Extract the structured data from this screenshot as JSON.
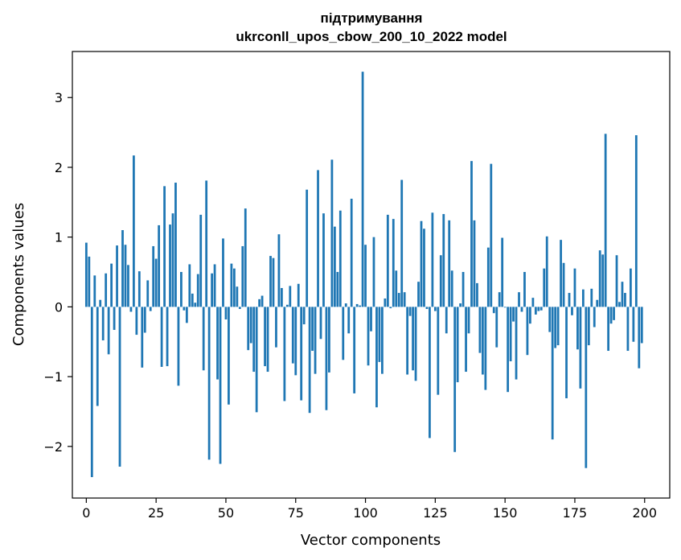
{
  "chart_data": {
    "type": "bar",
    "title_lines": [
      "підтримування",
      "ukrconll_upos_cbow_200_10_2022 model"
    ],
    "xlabel": "Vector components",
    "ylabel": "Components values",
    "xlim": [
      -5,
      209
    ],
    "ylim": [
      -2.74,
      3.66
    ],
    "xticks": [
      0,
      25,
      50,
      75,
      100,
      125,
      150,
      175,
      200
    ],
    "yticks": [
      -2,
      -1,
      0,
      1,
      2,
      3
    ],
    "ytick_labels": [
      "−2",
      "−1",
      "0",
      "1",
      "2",
      "3"
    ],
    "grid": false,
    "bar_color": "#1f77b4",
    "x": [
      0,
      1,
      2,
      3,
      4,
      5,
      6,
      7,
      8,
      9,
      10,
      11,
      12,
      13,
      14,
      15,
      16,
      17,
      18,
      19,
      20,
      21,
      22,
      23,
      24,
      25,
      26,
      27,
      28,
      29,
      30,
      31,
      32,
      33,
      34,
      35,
      36,
      37,
      38,
      39,
      40,
      41,
      42,
      43,
      44,
      45,
      46,
      47,
      48,
      49,
      50,
      51,
      52,
      53,
      54,
      55,
      56,
      57,
      58,
      59,
      60,
      61,
      62,
      63,
      64,
      65,
      66,
      67,
      68,
      69,
      70,
      71,
      72,
      73,
      74,
      75,
      76,
      77,
      78,
      79,
      80,
      81,
      82,
      83,
      84,
      85,
      86,
      87,
      88,
      89,
      90,
      91,
      92,
      93,
      94,
      95,
      96,
      97,
      98,
      99,
      100,
      101,
      102,
      103,
      104,
      105,
      106,
      107,
      108,
      109,
      110,
      111,
      112,
      113,
      114,
      115,
      116,
      117,
      118,
      119,
      120,
      121,
      122,
      123,
      124,
      125,
      126,
      127,
      128,
      129,
      130,
      131,
      132,
      133,
      134,
      135,
      136,
      137,
      138,
      139,
      140,
      141,
      142,
      143,
      144,
      145,
      146,
      147,
      148,
      149,
      150,
      151,
      152,
      153,
      154,
      155,
      156,
      157,
      158,
      159,
      160,
      161,
      162,
      163,
      164,
      165,
      166,
      167,
      168,
      169,
      170,
      171,
      172,
      173,
      174,
      175,
      176,
      177,
      178,
      179,
      180,
      181,
      182,
      183,
      184,
      185,
      186,
      187,
      188,
      189,
      190,
      191,
      192,
      193,
      194,
      195,
      196,
      197,
      198,
      199
    ],
    "values": [
      0.92,
      0.72,
      -2.44,
      0.45,
      -1.42,
      0.1,
      -0.48,
      0.48,
      -0.68,
      0.62,
      -0.33,
      0.88,
      -2.29,
      1.1,
      0.89,
      0.6,
      -0.07,
      2.17,
      -0.4,
      0.51,
      -0.87,
      -0.37,
      0.38,
      -0.06,
      0.87,
      0.69,
      1.17,
      -0.86,
      1.73,
      -0.85,
      1.18,
      1.34,
      1.78,
      -1.13,
      0.5,
      -0.05,
      -0.23,
      0.61,
      0.19,
      0.06,
      0.47,
      1.32,
      -0.91,
      1.81,
      -2.19,
      0.48,
      0.61,
      -1.04,
      -2.25,
      0.98,
      -0.18,
      -1.4,
      0.62,
      0.55,
      0.29,
      -0.03,
      0.87,
      1.41,
      -0.62,
      -0.52,
      -0.93,
      -1.51,
      0.11,
      0.16,
      -0.85,
      -0.93,
      0.73,
      0.7,
      -0.58,
      1.04,
      0.27,
      -1.35,
      0.03,
      0.3,
      -0.81,
      -0.98,
      0.33,
      -1.34,
      -0.25,
      1.68,
      -1.52,
      -0.63,
      -0.96,
      1.96,
      -0.46,
      1.34,
      -1.48,
      -0.94,
      2.11,
      1.15,
      0.5,
      1.38,
      -0.76,
      0.05,
      -0.38,
      1.55,
      -1.24,
      0.04,
      0.02,
      3.37,
      0.89,
      -0.84,
      -0.35,
      1.0,
      -1.44,
      -0.79,
      -0.96,
      0.12,
      1.32,
      -0.02,
      1.26,
      0.52,
      0.2,
      1.82,
      0.21,
      -0.97,
      -0.13,
      -0.91,
      -1.06,
      0.36,
      1.23,
      1.12,
      -0.03,
      -1.88,
      1.35,
      -0.06,
      -1.26,
      0.74,
      1.33,
      -0.38,
      1.24,
      0.52,
      -2.08,
      -1.08,
      0.05,
      0.5,
      -0.93,
      -0.38,
      2.09,
      1.24,
      0.34,
      -0.66,
      -0.97,
      -1.19,
      0.85,
      2.05,
      -0.09,
      -0.58,
      0.21,
      0.99,
      -0.01,
      -1.22,
      -0.78,
      -0.21,
      -1.04,
      0.21,
      -0.07,
      0.5,
      -0.69,
      -0.24,
      0.13,
      -0.11,
      -0.06,
      -0.05,
      0.55,
      1.01,
      -0.36,
      -1.9,
      -0.59,
      -0.55,
      0.96,
      0.63,
      -1.31,
      0.2,
      -0.12,
      0.55,
      -0.61,
      -1.17,
      0.25,
      -2.31,
      -0.55,
      0.26,
      -0.29,
      0.1,
      0.81,
      0.75,
      2.48,
      -0.63,
      -0.24,
      -0.19,
      0.74,
      0.07,
      0.36,
      0.2,
      -0.63,
      0.55,
      -0.5,
      2.46,
      -0.88,
      -0.52
    ]
  }
}
